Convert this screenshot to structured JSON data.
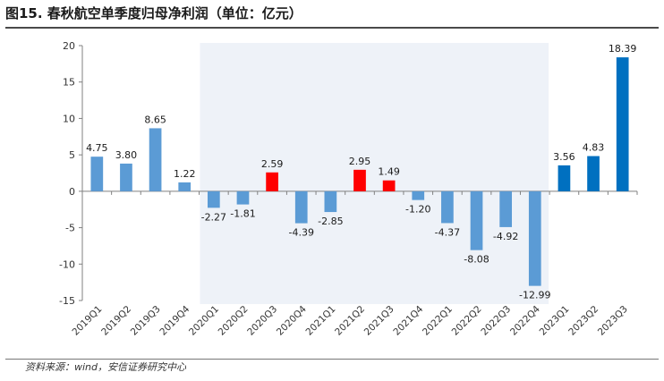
{
  "title": "图15. 春秋航空单季度归母净利润（单位：亿元）",
  "source": "资料来源：wind，安信证券研究中心",
  "colors": {
    "light_blue": "#5B9BD5",
    "red": "#FF0000",
    "dark_blue": "#0070C0",
    "shade": "#EEF2F8",
    "axis": "#808080",
    "text": "#1a1a1a"
  },
  "chart_data": {
    "type": "bar",
    "title": "图15. 春秋航空单季度归母净利润（单位：亿元）",
    "xlabel": "",
    "ylabel": "",
    "ylim": [
      -15,
      20
    ],
    "yticks": [
      "20",
      "15",
      "10",
      "5",
      "0",
      "-5",
      "-10",
      "-15"
    ],
    "ytick_values": [
      20,
      15,
      10,
      5,
      0,
      -5,
      -10,
      -15
    ],
    "shaded_region": {
      "from": "2020Q1",
      "to": "2022Q4"
    },
    "categories": [
      "2019Q1",
      "2019Q2",
      "2019Q3",
      "2019Q4",
      "2020Q1",
      "2020Q2",
      "2020Q3",
      "2020Q4",
      "2021Q1",
      "2021Q2",
      "2021Q3",
      "2021Q4",
      "2022Q1",
      "2022Q2",
      "2022Q3",
      "2022Q4",
      "2023Q1",
      "2023Q2",
      "2023Q3"
    ],
    "values": [
      4.75,
      3.8,
      8.65,
      1.22,
      -2.27,
      -1.81,
      2.59,
      -4.39,
      -2.85,
      2.95,
      1.49,
      -1.2,
      -4.37,
      -8.08,
      -4.92,
      -12.99,
      3.56,
      4.83,
      18.39
    ],
    "labels": [
      "4.75",
      "3.80",
      "8.65",
      "1.22",
      "-2.27",
      "-1.81",
      "2.59",
      "-4.39",
      "-2.85",
      "2.95",
      "1.49",
      "-1.20",
      "-4.37",
      "-8.08",
      "-4.92",
      "-12.99",
      "3.56",
      "4.83",
      "18.39"
    ],
    "bar_colors": [
      "light_blue",
      "light_blue",
      "light_blue",
      "light_blue",
      "light_blue",
      "light_blue",
      "red",
      "light_blue",
      "light_blue",
      "red",
      "red",
      "light_blue",
      "light_blue",
      "light_blue",
      "light_blue",
      "light_blue",
      "dark_blue",
      "dark_blue",
      "dark_blue"
    ]
  }
}
